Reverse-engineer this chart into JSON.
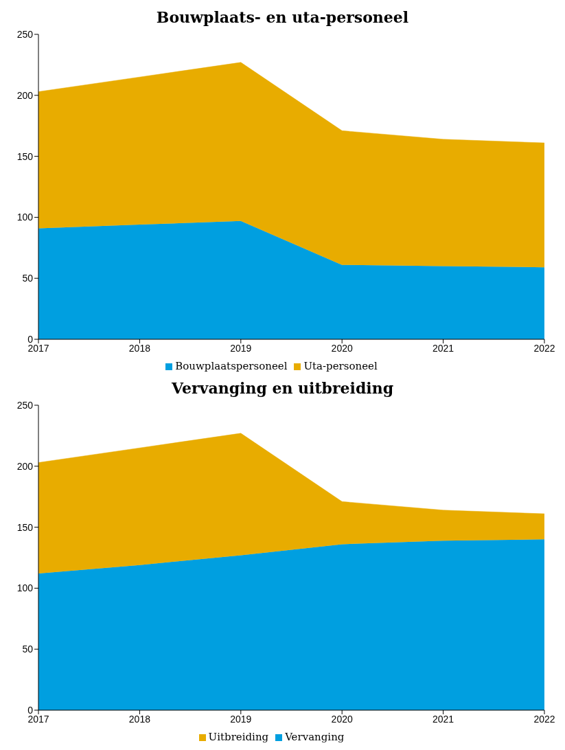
{
  "chart_data": [
    {
      "type": "area",
      "title": "Bouwplaats- en uta-personeel",
      "stacked": true,
      "x": [
        2017,
        2018,
        2019,
        2020,
        2021,
        2022
      ],
      "xlim": [
        2017,
        2022
      ],
      "xticks": [
        2017,
        2018,
        2019,
        2020,
        2021,
        2022
      ],
      "ylim": [
        0,
        250
      ],
      "yticks": [
        0,
        50,
        100,
        150,
        200,
        250
      ],
      "grid": false,
      "legend": "bottom",
      "series": [
        {
          "name": "Bouwplaatspersoneel",
          "color": "#009fe0",
          "values": [
            91,
            94,
            97,
            61,
            60,
            59
          ]
        },
        {
          "name": "Uta-personeel",
          "color": "#e8ac00",
          "values": [
            112,
            121,
            130,
            110,
            104,
            102
          ]
        }
      ]
    },
    {
      "type": "area",
      "title": "Vervanging en uitbreiding",
      "stacked": true,
      "x": [
        2017,
        2018,
        2019,
        2020,
        2021,
        2022
      ],
      "xlim": [
        2017,
        2022
      ],
      "xticks": [
        2017,
        2018,
        2019,
        2020,
        2021,
        2022
      ],
      "ylim": [
        0,
        250
      ],
      "yticks": [
        0,
        50,
        100,
        150,
        200,
        250
      ],
      "grid": false,
      "legend": "bottom",
      "series": [
        {
          "name": "Vervanging",
          "color": "#009fe0",
          "values": [
            112,
            119,
            127,
            136,
            139,
            140
          ]
        },
        {
          "name": "Uitbreiding",
          "color": "#e8ac00",
          "values": [
            91,
            96,
            100,
            35,
            25,
            21
          ]
        }
      ]
    }
  ]
}
